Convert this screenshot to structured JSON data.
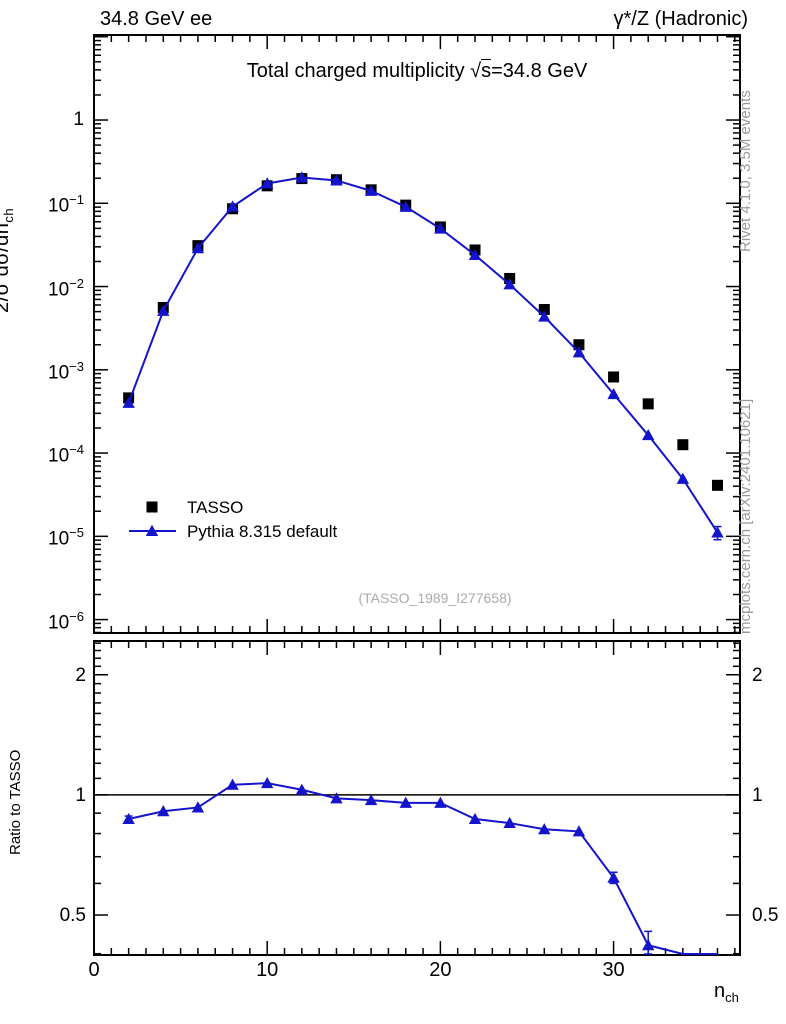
{
  "header": {
    "left": "34.8 GeV ee",
    "right": "γ*/Z (Hadronic)"
  },
  "side_notes": {
    "top_right": "Rivet 4.1.0,  3.5M events",
    "bottom_right": "mcplots.cern.ch [arXiv:2401.10621]"
  },
  "watermark": "(TASSO_1989_I277658)",
  "colors": {
    "data_black": "#000000",
    "pythia_blue": "#1414cc",
    "gray_text": "#999999",
    "watermark_gray": "#ababab"
  },
  "chart_data": {
    "type": "scatter-line-with-ratio",
    "title_parts": {
      "prefix": "Total charged multiplicity ",
      "sqrt_arg": "s",
      "suffix": "=34.8 GeV"
    },
    "xlabel": {
      "base": "n",
      "sub": "ch"
    },
    "ylabel": {
      "text": "2/σ  dσ/dn",
      "sub": "ch"
    },
    "ratio_label": "Ratio to TASSO",
    "legend": [
      {
        "label": "TASSO",
        "marker": "filled-square",
        "color": "#000000"
      },
      {
        "label": "Pythia 8.315 default",
        "marker": "filled-triangle-line",
        "color": "#1414cc"
      }
    ],
    "x": [
      2,
      4,
      6,
      8,
      10,
      12,
      14,
      16,
      18,
      20,
      22,
      24,
      26,
      28,
      30,
      32,
      34,
      36
    ],
    "series": [
      {
        "name": "TASSO",
        "values": [
          0.00046,
          0.0056,
          0.031,
          0.086,
          0.162,
          0.198,
          0.192,
          0.145,
          0.095,
          0.052,
          0.0275,
          0.0125,
          0.0053,
          0.002,
          0.00082,
          0.00039,
          0.000126,
          4.1e-05
        ]
      },
      {
        "name": "Pythia 8.315 default",
        "values": [
          0.0004,
          0.0051,
          0.0288,
          0.0912,
          0.173,
          0.204,
          0.188,
          0.141,
          0.0907,
          0.0497,
          0.0239,
          0.0106,
          0.00435,
          0.00162,
          0.00051,
          0.000164,
          4.9e-05,
          1.11e-05
        ],
        "y_err": [
          0,
          0,
          0,
          0,
          0,
          0,
          0,
          0,
          0,
          0,
          0,
          0,
          0,
          0,
          0,
          0,
          0,
          2e-06
        ]
      }
    ],
    "ratio": {
      "name": "Pythia 8.315 default / TASSO",
      "values": [
        0.87,
        0.91,
        0.93,
        1.06,
        1.07,
        1.03,
        0.98,
        0.97,
        0.955,
        0.955,
        0.87,
        0.85,
        0.82,
        0.81,
        0.62,
        0.42,
        0.39,
        0.27
      ],
      "y_err": [
        0.015,
        0,
        0,
        0,
        0,
        0,
        0,
        0,
        0,
        0,
        0,
        0,
        0,
        0,
        0.02,
        0.035,
        0,
        0
      ],
      "reference_line": 1
    },
    "axes": {
      "xlim": [
        0,
        37.3
      ],
      "ylim_main": [
        6.9e-07,
        10.5
      ],
      "ylim_ratio": [
        0.397,
        2.43
      ],
      "xticks": [
        0,
        10,
        20,
        30
      ],
      "x_minor_step": 1,
      "ytick_exponents": [
        0,
        -1,
        -2,
        -3,
        -4,
        -5,
        -6
      ],
      "ratio_ticks": [
        "2",
        "1",
        "0.5"
      ],
      "ratio_tick_values": [
        2,
        1,
        0.5
      ],
      "ratio_minor_step": 0.1,
      "grid": false,
      "yscale": "log",
      "ratio_yscale": "log"
    }
  }
}
